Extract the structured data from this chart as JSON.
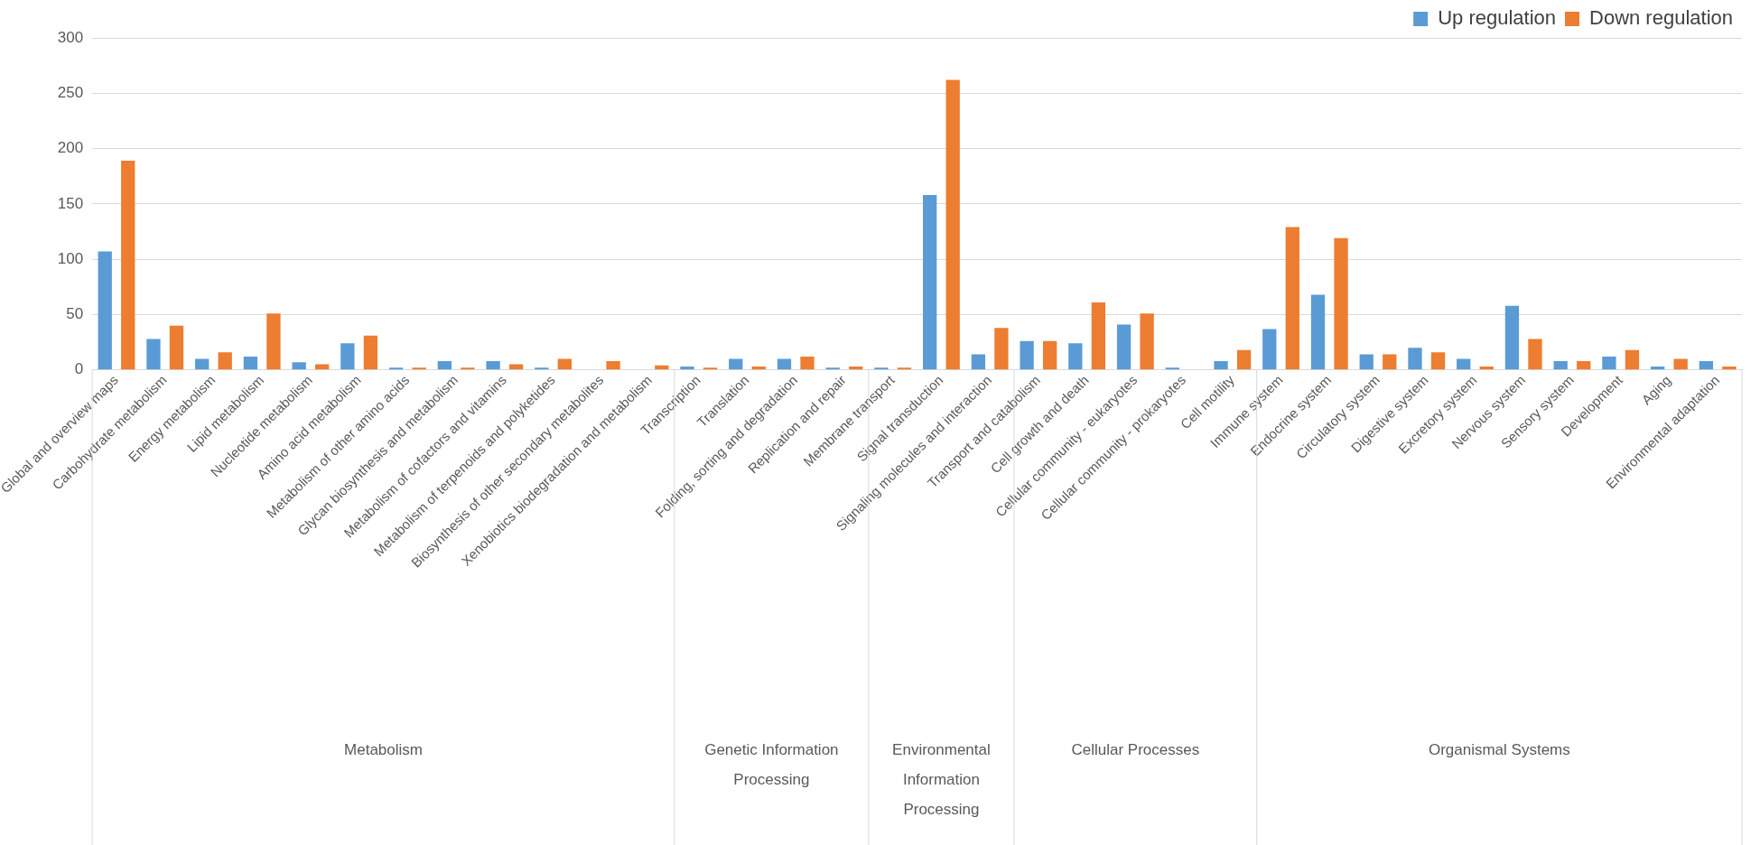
{
  "chart_data": {
    "type": "bar",
    "categories": [
      "Global and overview maps",
      "Carbohydrate metabolism",
      "Energy metabolism",
      "Lipid metabolism",
      "Nucleotide metabolism",
      "Amino acid metabolism",
      "Metabolism of other amino acids",
      "Glycan biosynthesis and metabolism",
      "Metabolism of cofactors and vitamins",
      "Metabolism of terpenoids and polyketides",
      "Biosynthesis of other secondary metabolites",
      "Xenobiotics biodegradation and metabolism",
      "Transcription",
      "Translation",
      "Folding, sorting and degradation",
      "Replication and repair",
      "Membrane transport",
      "Signal transduction",
      "Signaling molecules and interaction",
      "Transport and catabolism",
      "Cell growth and death",
      "Cellular community - eukaryotes",
      "Cellular community - prokaryotes",
      "Cell motility",
      "Immune system",
      "Endocrine system",
      "Circulatory system",
      "Digestive system",
      "Excretory system",
      "Nervous system",
      "Sensory system",
      "Development",
      "Aging",
      "Environmental adaptation"
    ],
    "series": [
      {
        "name": "Up regulation",
        "color": "#5b9bd5",
        "values": [
          107,
          28,
          10,
          12,
          7,
          24,
          2,
          8,
          8,
          2,
          0,
          0,
          3,
          10,
          10,
          2,
          2,
          158,
          14,
          26,
          24,
          41,
          2,
          8,
          37,
          68,
          14,
          20,
          10,
          58,
          8,
          12,
          3,
          8
        ]
      },
      {
        "name": "Down regulation",
        "color": "#ed7d31",
        "values": [
          189,
          40,
          16,
          51,
          5,
          31,
          2,
          2,
          5,
          10,
          8,
          4,
          2,
          3,
          12,
          3,
          2,
          262,
          38,
          26,
          61,
          51,
          0,
          18,
          129,
          119,
          14,
          16,
          3,
          28,
          8,
          18,
          10,
          3
        ]
      }
    ],
    "annotations": [
      "Metabolism",
      "Genetic Information Processing",
      "Environmental Information Processing",
      "Cellular Processes",
      "Organismal Systems"
    ],
    "ylim": [
      0,
      300
    ],
    "yticks": [
      0,
      50,
      100,
      150,
      200,
      250,
      300
    ],
    "grid": "y",
    "legend": "top right"
  }
}
